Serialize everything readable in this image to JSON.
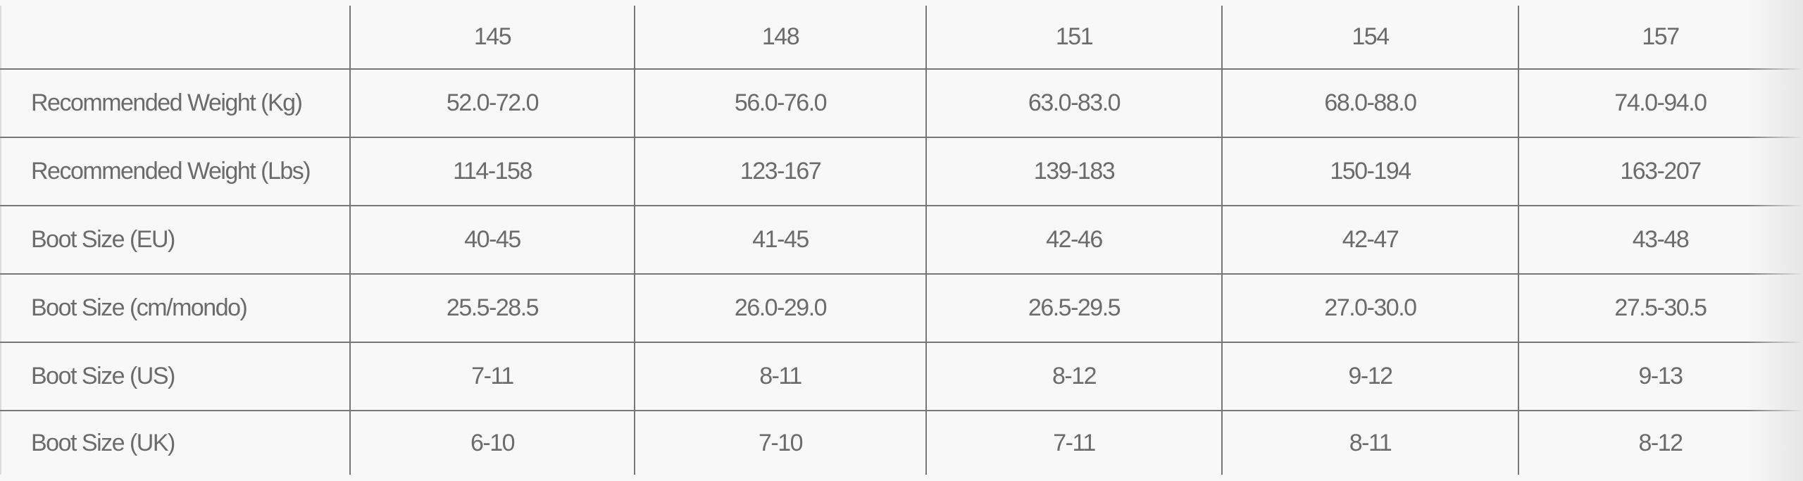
{
  "table": {
    "header": [
      "",
      "145",
      "148",
      "151",
      "154",
      "157"
    ],
    "rows": [
      {
        "label": "Recommended Weight (Kg)",
        "values": [
          "52.0-72.0",
          "56.0-76.0",
          "63.0-83.0",
          "68.0-88.0",
          "74.0-94.0"
        ]
      },
      {
        "label": "Recommended Weight (Lbs)",
        "values": [
          "114-158",
          "123-167",
          "139-183",
          "150-194",
          "163-207"
        ]
      },
      {
        "label": "Boot Size (EU)",
        "values": [
          "40-45",
          "41-45",
          "42-46",
          "42-47",
          "43-48"
        ]
      },
      {
        "label": "Boot Size (cm/mondo)",
        "values": [
          "25.5-28.5",
          "26.0-29.0",
          "26.5-29.5",
          "27.0-30.0",
          "27.5-30.5"
        ]
      },
      {
        "label": "Boot Size (US)",
        "values": [
          "7-11",
          "8-11",
          "8-12",
          "9-12",
          "9-13"
        ]
      },
      {
        "label": "Boot Size (UK)",
        "values": [
          "6-10",
          "7-10",
          "7-11",
          "8-11",
          "8-12"
        ]
      }
    ]
  }
}
